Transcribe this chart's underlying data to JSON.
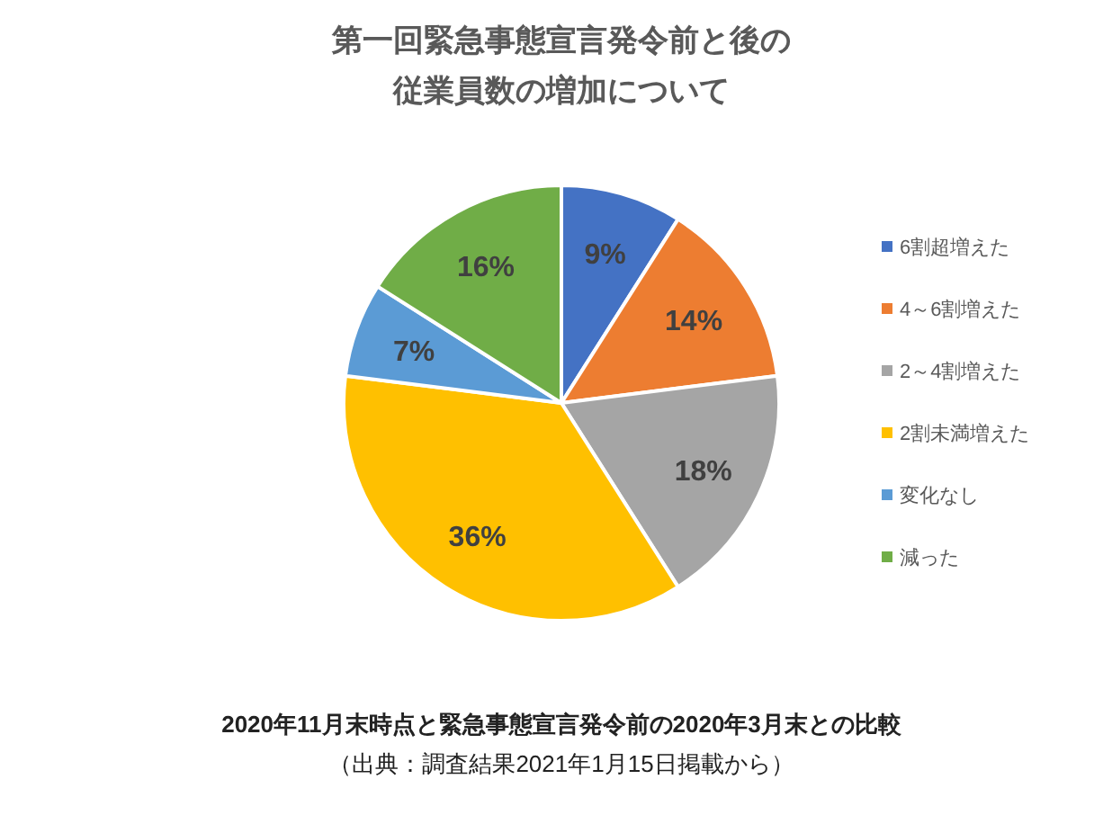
{
  "chart_data": {
    "type": "pie",
    "title": "第一回緊急事態宣言発令前と後の従業員数の増加について",
    "categories": [
      "6割超増えた",
      "4～6割増えた",
      "2～4割増えた",
      "2割未満増えた",
      "変化なし",
      "減った"
    ],
    "values": [
      9,
      14,
      18,
      36,
      7,
      16
    ],
    "colors": [
      "#4472c4",
      "#ed7d31",
      "#a5a5a5",
      "#ffc000",
      "#5b9bd5",
      "#70ad47"
    ],
    "value_labels": [
      "9%",
      "14%",
      "18%",
      "36%",
      "7%",
      "16%"
    ],
    "legend": "right",
    "annotations": [
      "2020年11月末時点と緊急事態宣言発令前の2020年3月末との比較",
      "（出典：調査結果2021年1月15日掲載から）"
    ]
  }
}
